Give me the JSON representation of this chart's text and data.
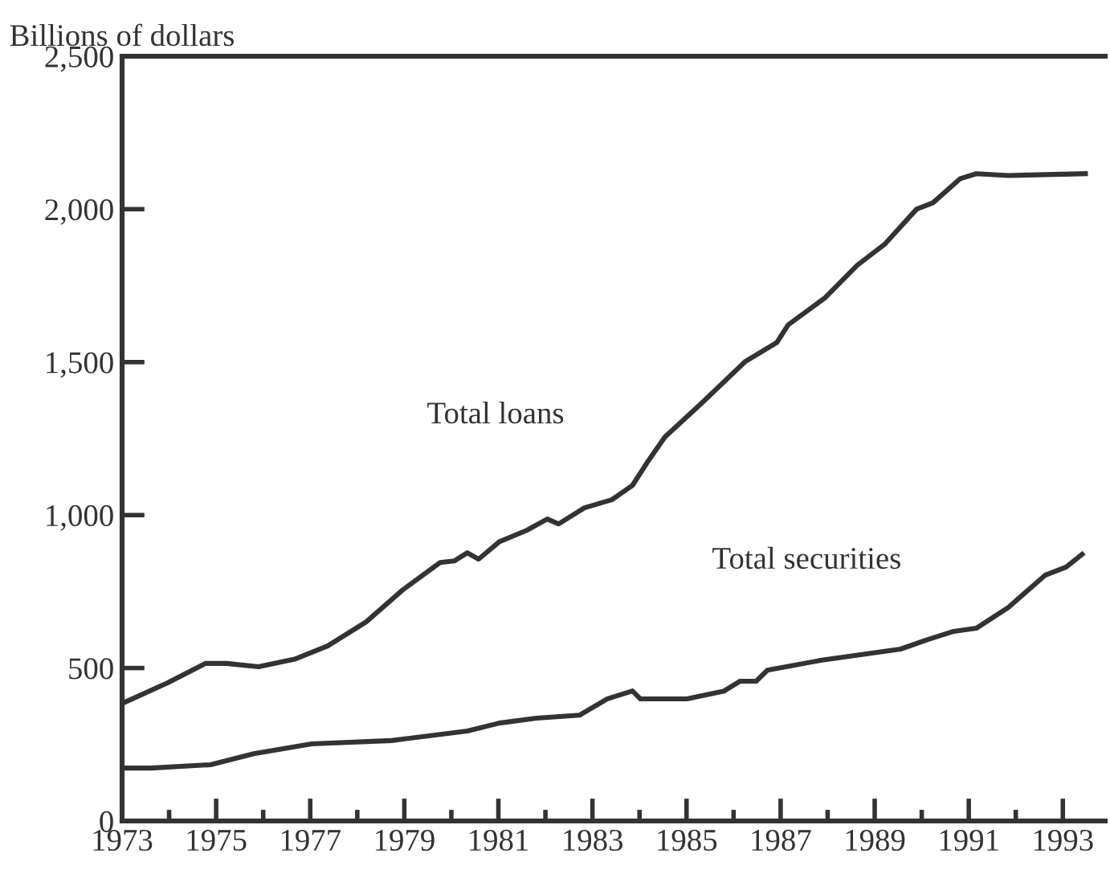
{
  "chart_data": {
    "type": "line",
    "ylabel": "Billions of dollars",
    "xlim": [
      1973,
      1993.9
    ],
    "ylim": [
      0,
      2500
    ],
    "xticks": [
      {
        "value": 1973,
        "label": "1973"
      },
      {
        "value": 1974,
        "label": null
      },
      {
        "value": 1975,
        "label": "1975"
      },
      {
        "value": 1976,
        "label": null
      },
      {
        "value": 1977,
        "label": "1977"
      },
      {
        "value": 1978,
        "label": null
      },
      {
        "value": 1979,
        "label": "1979"
      },
      {
        "value": 1980,
        "label": null
      },
      {
        "value": 1981,
        "label": "1981"
      },
      {
        "value": 1982,
        "label": null
      },
      {
        "value": 1983,
        "label": "1983"
      },
      {
        "value": 1984,
        "label": null
      },
      {
        "value": 1985,
        "label": "1985"
      },
      {
        "value": 1986,
        "label": null
      },
      {
        "value": 1987,
        "label": "1987"
      },
      {
        "value": 1988,
        "label": null
      },
      {
        "value": 1989,
        "label": "1989"
      },
      {
        "value": 1990,
        "label": null
      },
      {
        "value": 1991,
        "label": "1991"
      },
      {
        "value": 1992,
        "label": null
      },
      {
        "value": 1993,
        "label": "1993"
      }
    ],
    "yticks": [
      0,
      {
        "value": 500,
        "label": "500"
      },
      {
        "value": 1000,
        "label": "1,000"
      },
      {
        "value": 1500,
        "label": "1,500"
      },
      {
        "value": 2000,
        "label": "2,000"
      },
      {
        "value": 2500,
        "label": "2,500"
      }
    ],
    "grid": false,
    "legend": false,
    "marker": "none",
    "line_style": "solid",
    "series": [
      {
        "name": "Total loans",
        "color": "#333333",
        "x": [
          1973.07,
          1973.96,
          1974.77,
          1975.22,
          1975.9,
          1976.69,
          1977.37,
          1978.19,
          1978.97,
          1979.76,
          1980.06,
          1980.34,
          1980.58,
          1981.02,
          1981.6,
          1982.04,
          1982.28,
          1982.83,
          1983.41,
          1983.85,
          1984.16,
          1984.54,
          1985.35,
          1986.24,
          1986.92,
          1987.16,
          1987.95,
          1988.63,
          1989.21,
          1989.89,
          1990.24,
          1990.82,
          1991.16,
          1991.84,
          1993.48
        ],
        "values": [
          389,
          451,
          515,
          515,
          504,
          530,
          572,
          651,
          756,
          845,
          850,
          877,
          856,
          913,
          950,
          987,
          971,
          1024,
          1050,
          1097,
          1171,
          1255,
          1370,
          1501,
          1564,
          1622,
          1711,
          1817,
          1885,
          2000,
          2021,
          2100,
          2116,
          2110,
          2116
        ]
      },
      {
        "name": "Total securities",
        "color": "#333333",
        "x": [
          1973.07,
          1973.61,
          1974.88,
          1975.8,
          1977.03,
          1978.73,
          1980.34,
          1981.02,
          1981.81,
          1982.73,
          1983.31,
          1983.85,
          1984.02,
          1985.01,
          1985.8,
          1986.14,
          1986.48,
          1986.72,
          1987.85,
          1989.55,
          1990.13,
          1990.68,
          1991.16,
          1991.84,
          1992.62,
          1993.07,
          1993.41
        ],
        "values": [
          173,
          173,
          184,
          220,
          252,
          263,
          294,
          320,
          336,
          346,
          399,
          425,
          399,
          399,
          425,
          457,
          457,
          493,
          525,
          562,
          593,
          620,
          630,
          698,
          803,
          830,
          872
        ]
      }
    ]
  }
}
